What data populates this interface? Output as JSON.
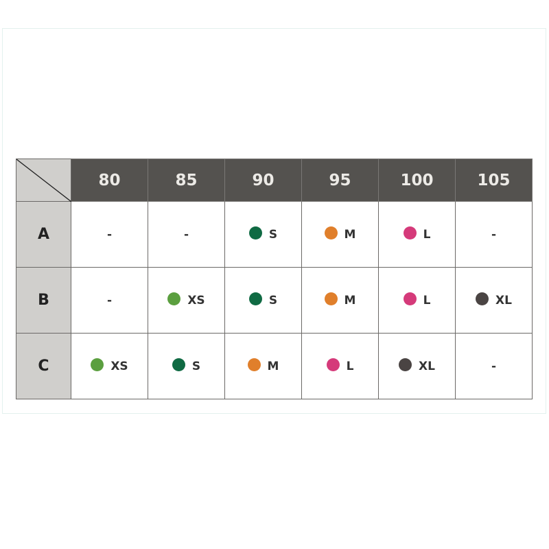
{
  "colors": {
    "XS": "#5b9f3f",
    "S": "#0f6a43",
    "M": "#e07f2b",
    "L": "#d53a7a",
    "XL": "#4a4443",
    "header_bg": "#54524f",
    "row_header_bg": "#d0cfcc"
  },
  "columns": [
    "80",
    "85",
    "90",
    "95",
    "100",
    "105"
  ],
  "rows": [
    {
      "label": "A",
      "cells": [
        "-",
        "-",
        "S",
        "M",
        "L",
        "-"
      ]
    },
    {
      "label": "B",
      "cells": [
        "-",
        "XS",
        "S",
        "M",
        "L",
        "XL"
      ]
    },
    {
      "label": "C",
      "cells": [
        "XS",
        "S",
        "M",
        "L",
        "XL",
        "-"
      ]
    }
  ]
}
